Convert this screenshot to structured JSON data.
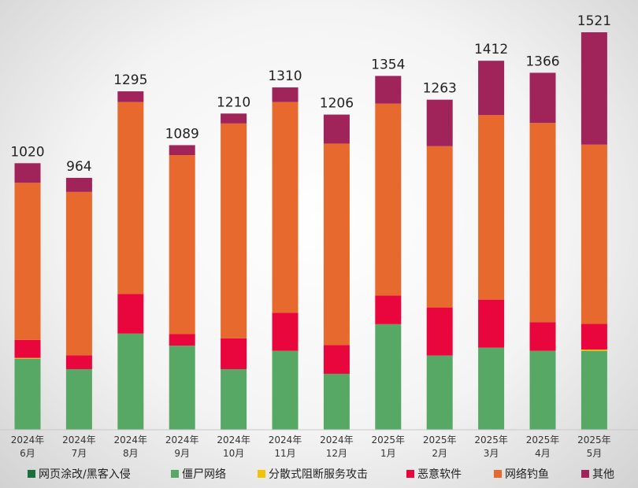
{
  "chart_data": {
    "type": "bar",
    "stacked": true,
    "categories": [
      [
        "2024年",
        "6月"
      ],
      [
        "2024年",
        "7月"
      ],
      [
        "2024年",
        "8月"
      ],
      [
        "2024年",
        "9月"
      ],
      [
        "2024年",
        "10月"
      ],
      [
        "2024年",
        "11月"
      ],
      [
        "2024年",
        "12月"
      ],
      [
        "2025年",
        "1月"
      ],
      [
        "2025年",
        "2月"
      ],
      [
        "2025年",
        "3月"
      ],
      [
        "2025年",
        "4月"
      ],
      [
        "2025年",
        "5月"
      ]
    ],
    "totals": [
      1020,
      964,
      1295,
      1089,
      1210,
      1310,
      1206,
      1354,
      1263,
      1412,
      1366,
      1521
    ],
    "series": [
      {
        "name": "网页涂改/黑客入侵",
        "color": "#1a6e3c",
        "values": [
          0,
          0,
          0,
          0,
          0,
          0,
          0,
          0,
          0,
          0,
          0,
          0
        ]
      },
      {
        "name": "僵尸网络",
        "color": "#57a865",
        "values": [
          272,
          232,
          368,
          322,
          232,
          302,
          214,
          404,
          284,
          314,
          302,
          302
        ]
      },
      {
        "name": "分散式阻断服务攻击",
        "color": "#f0c400",
        "values": [
          3,
          0,
          0,
          0,
          0,
          0,
          0,
          0,
          0,
          0,
          0,
          5
        ]
      },
      {
        "name": "恶意软件",
        "color": "#e8063c",
        "values": [
          69,
          53,
          152,
          44,
          118,
          146,
          110,
          110,
          184,
          184,
          110,
          98
        ]
      },
      {
        "name": "网络钓鱼",
        "color": "#e8692e",
        "values": [
          601,
          625,
          734,
          685,
          822,
          806,
          771,
          734,
          617,
          706,
          762,
          686
        ]
      },
      {
        "name": "其他",
        "color": "#a0245a",
        "values": [
          75,
          54,
          41,
          38,
          38,
          56,
          111,
          106,
          178,
          208,
          192,
          430
        ]
      }
    ],
    "ylim": [
      0,
      1521
    ],
    "grid": false,
    "legend": "bottom"
  }
}
